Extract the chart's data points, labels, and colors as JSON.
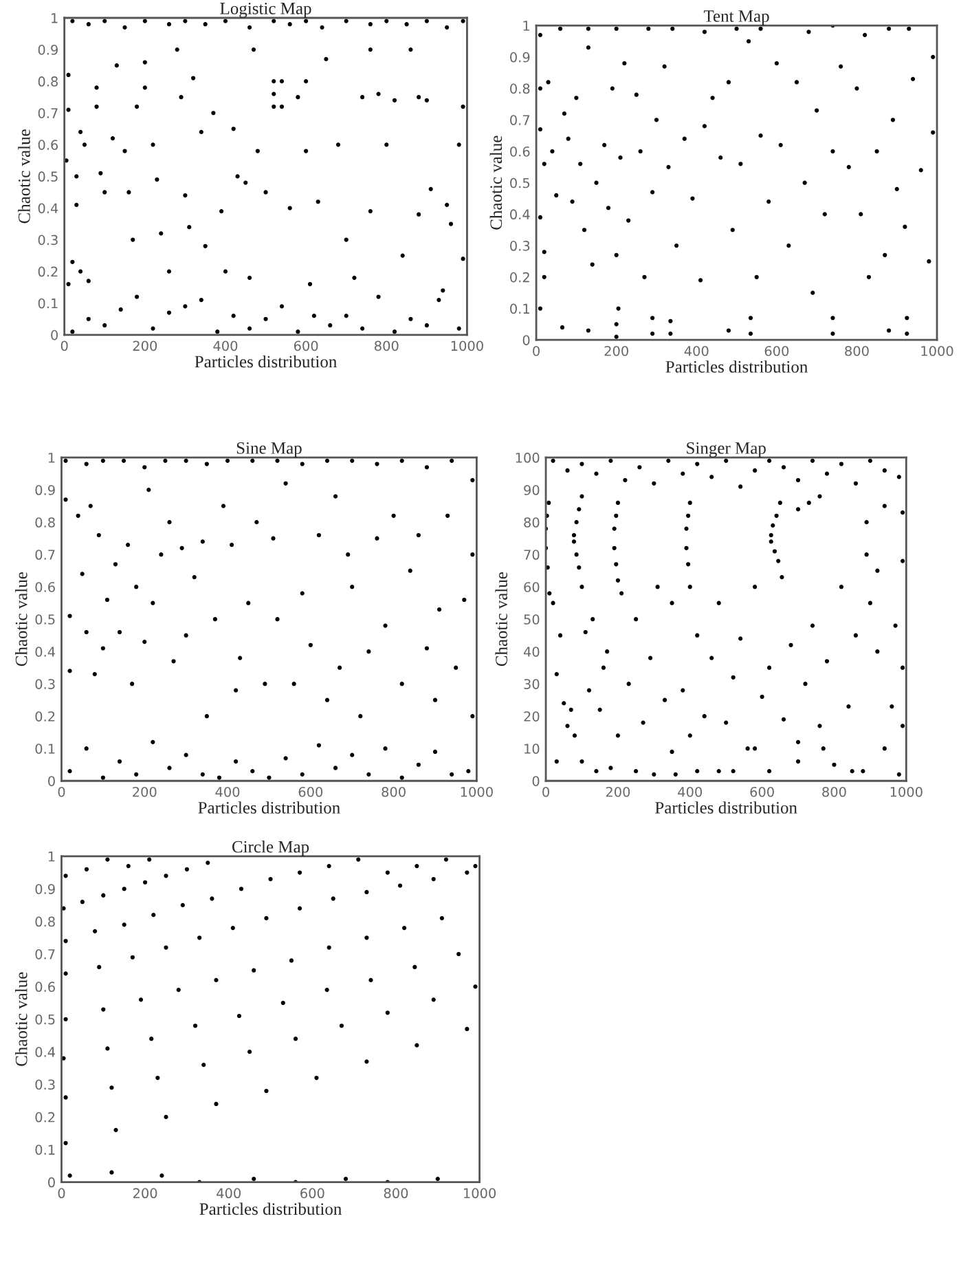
{
  "chart_data": [
    {
      "type": "scatter",
      "title": "Logistic Map",
      "xlabel": "Particles distribution",
      "ylabel": "Chaotic value",
      "color": "#000000",
      "marker": "circle",
      "xlim": [
        0,
        1000
      ],
      "ylim": [
        0,
        1
      ],
      "xticks": [
        0,
        200,
        400,
        600,
        800,
        1000
      ],
      "yticks": [
        0,
        0.1,
        0.2,
        0.3,
        0.4,
        0.5,
        0.6,
        0.7,
        0.8,
        0.9,
        1
      ],
      "x": [
        20,
        60,
        100,
        150,
        200,
        260,
        300,
        350,
        400,
        460,
        520,
        560,
        600,
        640,
        700,
        760,
        800,
        850,
        900,
        950,
        990,
        10,
        10,
        5,
        30,
        30,
        20,
        10,
        40,
        50,
        40,
        60,
        80,
        80,
        90,
        100,
        120,
        130,
        150,
        160,
        170,
        180,
        200,
        200,
        220,
        230,
        240,
        260,
        280,
        290,
        300,
        310,
        320,
        340,
        350,
        370,
        390,
        400,
        420,
        430,
        450,
        460,
        470,
        480,
        500,
        520,
        520,
        520,
        540,
        540,
        560,
        580,
        600,
        600,
        610,
        630,
        650,
        680,
        700,
        720,
        740,
        760,
        760,
        780,
        800,
        820,
        840,
        860,
        880,
        880,
        900,
        910,
        930,
        950,
        960,
        980,
        990,
        990,
        20,
        60,
        100,
        140,
        180,
        220,
        260,
        300,
        340,
        380,
        420,
        460,
        500,
        540,
        580,
        620,
        660,
        700,
        740,
        780,
        820,
        860,
        900,
        940,
        980
      ],
      "values": [
        0.99,
        0.98,
        0.99,
        0.97,
        0.99,
        0.98,
        0.99,
        0.98,
        0.99,
        0.97,
        0.99,
        0.98,
        0.99,
        0.97,
        0.99,
        0.98,
        0.99,
        0.98,
        0.99,
        0.97,
        0.99,
        0.82,
        0.71,
        0.55,
        0.5,
        0.41,
        0.23,
        0.16,
        0.64,
        0.6,
        0.2,
        0.17,
        0.78,
        0.72,
        0.51,
        0.45,
        0.62,
        0.85,
        0.58,
        0.45,
        0.3,
        0.72,
        0.86,
        0.78,
        0.6,
        0.49,
        0.32,
        0.2,
        0.9,
        0.75,
        0.44,
        0.34,
        0.81,
        0.64,
        0.28,
        0.7,
        0.39,
        0.2,
        0.65,
        0.5,
        0.48,
        0.18,
        0.9,
        0.58,
        0.45,
        0.8,
        0.76,
        0.72,
        0.8,
        0.72,
        0.4,
        0.75,
        0.8,
        0.58,
        0.16,
        0.42,
        0.87,
        0.6,
        0.3,
        0.18,
        0.75,
        0.9,
        0.39,
        0.76,
        0.6,
        0.74,
        0.25,
        0.9,
        0.75,
        0.38,
        0.74,
        0.46,
        0.11,
        0.41,
        0.35,
        0.6,
        0.24,
        0.72,
        0.01,
        0.05,
        0.03,
        0.08,
        0.12,
        0.02,
        0.07,
        0.09,
        0.11,
        0.01,
        0.06,
        0.02,
        0.05,
        0.09,
        0.01,
        0.06,
        0.03,
        0.06,
        0.02,
        0.12,
        0.01,
        0.05,
        0.03,
        0.14,
        0.02
      ]
    },
    {
      "type": "scatter",
      "title": "Tent Map",
      "xlabel": "Particles distribution",
      "ylabel": "Chaotic value",
      "color": "#000000",
      "marker": "circle",
      "xlim": [
        0,
        1000
      ],
      "ylim": [
        0,
        1
      ],
      "xticks": [
        0,
        200,
        400,
        600,
        800,
        1000
      ],
      "yticks": [
        0,
        0.1,
        0.2,
        0.3,
        0.4,
        0.5,
        0.6,
        0.7,
        0.8,
        0.9,
        1
      ],
      "x": [
        10,
        60,
        130,
        200,
        280,
        340,
        420,
        500,
        560,
        680,
        740,
        820,
        880,
        930,
        990,
        10,
        10,
        20,
        30,
        40,
        50,
        10,
        20,
        20,
        10,
        70,
        80,
        90,
        100,
        110,
        120,
        130,
        140,
        150,
        170,
        180,
        190,
        200,
        210,
        220,
        230,
        250,
        260,
        270,
        290,
        300,
        320,
        330,
        350,
        370,
        390,
        410,
        420,
        440,
        460,
        480,
        490,
        510,
        530,
        550,
        560,
        580,
        600,
        610,
        630,
        650,
        670,
        690,
        700,
        720,
        740,
        760,
        780,
        800,
        810,
        830,
        850,
        870,
        890,
        900,
        920,
        940,
        960,
        980,
        990,
        200,
        200,
        205,
        290,
        290,
        335,
        335,
        480,
        535,
        535,
        740,
        740,
        880,
        925,
        925,
        65,
        130
      ],
      "values": [
        0.97,
        0.99,
        0.99,
        0.99,
        0.99,
        0.99,
        0.98,
        0.99,
        0.99,
        0.98,
        1.0,
        0.97,
        0.99,
        0.99,
        0.9,
        0.8,
        0.67,
        0.56,
        0.82,
        0.6,
        0.46,
        0.39,
        0.28,
        0.2,
        0.1,
        0.72,
        0.64,
        0.44,
        0.77,
        0.56,
        0.35,
        0.93,
        0.24,
        0.5,
        0.62,
        0.42,
        0.8,
        0.27,
        0.58,
        0.88,
        0.38,
        0.78,
        0.6,
        0.2,
        0.47,
        0.7,
        0.87,
        0.55,
        0.3,
        0.64,
        0.45,
        0.19,
        0.68,
        0.77,
        0.58,
        0.82,
        0.35,
        0.56,
        0.95,
        0.2,
        0.65,
        0.44,
        0.88,
        0.62,
        0.3,
        0.82,
        0.5,
        0.15,
        0.73,
        0.4,
        0.6,
        0.87,
        0.55,
        0.8,
        0.4,
        0.2,
        0.6,
        0.27,
        0.7,
        0.48,
        0.36,
        0.83,
        0.54,
        0.25,
        0.66,
        0.01,
        0.05,
        0.1,
        0.02,
        0.07,
        0.02,
        0.06,
        0.03,
        0.02,
        0.07,
        0.02,
        0.07,
        0.03,
        0.02,
        0.07,
        0.04,
        0.03
      ]
    },
    {
      "type": "scatter",
      "title": "Sine Map",
      "xlabel": "Particles distribution",
      "ylabel": "Chaotic value",
      "color": "#000000",
      "marker": "circle",
      "xlim": [
        0,
        1000
      ],
      "ylim": [
        0,
        1
      ],
      "xticks": [
        0,
        200,
        400,
        600,
        800,
        1000
      ],
      "yticks": [
        0,
        0.1,
        0.2,
        0.3,
        0.4,
        0.5,
        0.6,
        0.7,
        0.8,
        0.9,
        1
      ],
      "x": [
        10,
        60,
        100,
        150,
        200,
        250,
        300,
        350,
        400,
        460,
        520,
        580,
        640,
        700,
        760,
        820,
        880,
        940,
        990,
        10,
        20,
        20,
        40,
        50,
        60,
        70,
        80,
        90,
        100,
        110,
        130,
        140,
        160,
        170,
        180,
        200,
        210,
        220,
        240,
        260,
        270,
        290,
        300,
        320,
        340,
        350,
        370,
        390,
        410,
        420,
        430,
        450,
        470,
        490,
        510,
        520,
        540,
        560,
        580,
        600,
        620,
        640,
        660,
        670,
        690,
        700,
        720,
        740,
        760,
        780,
        800,
        820,
        840,
        860,
        880,
        900,
        910,
        930,
        950,
        970,
        990,
        990,
        20,
        60,
        100,
        140,
        180,
        220,
        260,
        300,
        340,
        380,
        420,
        460,
        500,
        540,
        580,
        620,
        660,
        700,
        740,
        780,
        820,
        860,
        900,
        940,
        980
      ],
      "values": [
        0.99,
        0.98,
        0.99,
        0.99,
        0.97,
        0.99,
        0.99,
        0.98,
        0.99,
        0.99,
        0.99,
        0.98,
        0.99,
        0.99,
        0.98,
        0.99,
        0.97,
        0.99,
        0.93,
        0.87,
        0.51,
        0.34,
        0.82,
        0.64,
        0.46,
        0.85,
        0.33,
        0.76,
        0.41,
        0.56,
        0.67,
        0.46,
        0.73,
        0.3,
        0.6,
        0.43,
        0.9,
        0.55,
        0.7,
        0.8,
        0.37,
        0.72,
        0.45,
        0.63,
        0.74,
        0.2,
        0.5,
        0.85,
        0.73,
        0.28,
        0.38,
        0.55,
        0.8,
        0.3,
        0.75,
        0.5,
        0.92,
        0.3,
        0.58,
        0.42,
        0.76,
        0.25,
        0.88,
        0.35,
        0.7,
        0.6,
        0.2,
        0.4,
        0.75,
        0.48,
        0.82,
        0.3,
        0.65,
        0.76,
        0.41,
        0.25,
        0.53,
        0.82,
        0.35,
        0.56,
        0.7,
        0.2,
        0.03,
        0.1,
        0.01,
        0.06,
        0.02,
        0.12,
        0.04,
        0.08,
        0.02,
        0.01,
        0.06,
        0.03,
        0.01,
        0.07,
        0.02,
        0.11,
        0.04,
        0.08,
        0.02,
        0.1,
        0.01,
        0.05,
        0.09,
        0.02,
        0.03
      ]
    },
    {
      "type": "scatter",
      "title": "Singer Map",
      "xlabel": "Particles distribution",
      "ylabel": "Chaotic value",
      "color": "#000000",
      "marker": "circle",
      "xlim": [
        0,
        1000
      ],
      "ylim": [
        0,
        100
      ],
      "xticks": [
        0,
        200,
        400,
        600,
        800,
        1000
      ],
      "yticks": [
        0,
        10,
        20,
        30,
        40,
        50,
        60,
        70,
        80,
        90,
        100
      ],
      "x": [
        20,
        60,
        100,
        140,
        180,
        220,
        260,
        300,
        340,
        380,
        420,
        460,
        500,
        540,
        580,
        620,
        660,
        700,
        740,
        780,
        820,
        860,
        900,
        940,
        980,
        0,
        3,
        8,
        0,
        5,
        10,
        78,
        85,
        92,
        100,
        78,
        85,
        92,
        100,
        190,
        195,
        200,
        190,
        195,
        200,
        390,
        395,
        400,
        390,
        395,
        400,
        625,
        630,
        640,
        650,
        625,
        635,
        645,
        655,
        700,
        730,
        760,
        890,
        890,
        920,
        940,
        990,
        990,
        20,
        30,
        40,
        50,
        60,
        70,
        80,
        110,
        120,
        130,
        150,
        160,
        170,
        180,
        200,
        210,
        230,
        250,
        270,
        290,
        310,
        330,
        350,
        360,
        380,
        400,
        420,
        440,
        460,
        480,
        500,
        520,
        540,
        560,
        580,
        600,
        620,
        660,
        680,
        700,
        720,
        740,
        760,
        780,
        800,
        820,
        840,
        860,
        880,
        900,
        920,
        940,
        960,
        970,
        990,
        990,
        30,
        100,
        140,
        250,
        300,
        350,
        420,
        480,
        520,
        580,
        620,
        700,
        770,
        850,
        980
      ],
      "values": [
        99,
        96,
        98,
        95,
        99,
        93,
        97,
        92,
        99,
        95,
        98,
        94,
        99,
        91,
        96,
        99,
        97,
        93,
        99,
        95,
        98,
        92,
        99,
        96,
        94,
        78,
        82,
        86,
        72,
        66,
        58,
        76,
        80,
        84,
        88,
        74,
        70,
        66,
        60,
        78,
        82,
        86,
        72,
        67,
        62,
        78,
        82,
        86,
        72,
        67,
        60,
        76,
        79,
        82,
        86,
        74,
        71,
        68,
        63,
        84,
        86,
        88,
        80,
        70,
        65,
        85,
        83,
        68,
        55,
        33,
        45,
        24,
        17,
        22,
        14,
        46,
        28,
        50,
        22,
        35,
        40,
        4,
        14,
        58,
        30,
        50,
        18,
        38,
        60,
        25,
        55,
        2,
        28,
        14,
        45,
        20,
        38,
        55,
        18,
        32,
        44,
        10,
        60,
        26,
        35,
        19,
        42,
        12,
        30,
        48,
        17,
        37,
        5,
        60,
        23,
        45,
        3,
        55,
        40,
        10,
        23,
        48,
        17,
        35,
        6,
        6,
        3,
        3,
        2,
        9,
        3,
        3,
        3,
        10,
        3,
        6,
        10,
        3,
        2
      ]
    },
    {
      "type": "scatter",
      "title": "Circle Map",
      "xlabel": "Particles distribution",
      "ylabel": "Chaotic value",
      "color": "#000000",
      "marker": "circle",
      "xlim": [
        0,
        1000
      ],
      "ylim": [
        0,
        1
      ],
      "xticks": [
        0,
        200,
        400,
        600,
        800,
        1000
      ],
      "yticks": [
        0,
        0.1,
        0.2,
        0.3,
        0.4,
        0.5,
        0.6,
        0.7,
        0.8,
        0.9,
        1
      ],
      "x": [
        20,
        120,
        240,
        330,
        460,
        560,
        680,
        780,
        900,
        10,
        60,
        110,
        160,
        210,
        5,
        50,
        100,
        150,
        200,
        250,
        300,
        350,
        10,
        80,
        150,
        220,
        290,
        360,
        430,
        500,
        570,
        640,
        710,
        780,
        850,
        920,
        990,
        10,
        90,
        170,
        250,
        330,
        410,
        490,
        570,
        650,
        730,
        810,
        890,
        970,
        10,
        100,
        190,
        280,
        370,
        460,
        550,
        640,
        730,
        820,
        910,
        5,
        110,
        215,
        320,
        425,
        530,
        635,
        740,
        845,
        950,
        10,
        120,
        230,
        340,
        450,
        560,
        670,
        780,
        890,
        990,
        10,
        130,
        250,
        370,
        490,
        610,
        730,
        850,
        970
      ],
      "values": [
        0.02,
        0.03,
        0.02,
        0.0,
        0.01,
        0.0,
        0.01,
        0.0,
        0.01,
        0.94,
        0.96,
        0.99,
        0.97,
        0.99,
        0.84,
        0.86,
        0.88,
        0.9,
        0.92,
        0.94,
        0.96,
        0.98,
        0.74,
        0.77,
        0.79,
        0.82,
        0.85,
        0.87,
        0.9,
        0.93,
        0.95,
        0.97,
        0.99,
        0.95,
        0.97,
        0.99,
        0.97,
        0.64,
        0.66,
        0.69,
        0.72,
        0.75,
        0.78,
        0.81,
        0.84,
        0.87,
        0.89,
        0.91,
        0.93,
        0.95,
        0.5,
        0.53,
        0.56,
        0.59,
        0.62,
        0.65,
        0.68,
        0.72,
        0.75,
        0.78,
        0.81,
        0.38,
        0.41,
        0.44,
        0.48,
        0.51,
        0.55,
        0.59,
        0.62,
        0.66,
        0.7,
        0.26,
        0.29,
        0.32,
        0.36,
        0.4,
        0.44,
        0.48,
        0.52,
        0.56,
        0.6,
        0.12,
        0.16,
        0.2,
        0.24,
        0.28,
        0.32,
        0.37,
        0.42,
        0.47
      ]
    }
  ]
}
